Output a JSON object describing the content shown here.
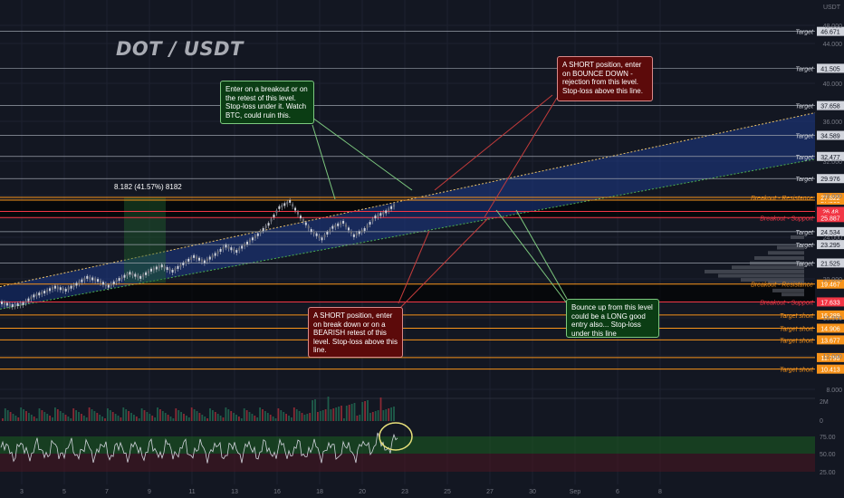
{
  "header": {
    "title": "DOT / USDT",
    "currency": "USDT"
  },
  "chart_data": {
    "type": "line",
    "title": "DOT / USDT",
    "y_axis_labels": [
      "48.000",
      "44.000",
      "40.000",
      "36.000",
      "32.000",
      "28.000",
      "24.000",
      "20.000",
      "16.000",
      "12.000",
      "8.000"
    ],
    "x_tick_labels": [
      "3",
      "5",
      "7",
      "9",
      "11",
      "13",
      "16",
      "18",
      "20",
      "23",
      "25",
      "27",
      "30",
      "Sep",
      "6",
      "8"
    ],
    "levels": [
      {
        "label": "Target",
        "price": "46.671",
        "kind": "target",
        "color": "#9aa0aa"
      },
      {
        "label": "Target",
        "price": "41.505",
        "kind": "target",
        "color": "#9aa0aa"
      },
      {
        "label": "Target",
        "price": "37.658",
        "kind": "target",
        "color": "#9aa0aa"
      },
      {
        "label": "Target",
        "price": "34.589",
        "kind": "target",
        "color": "#9aa0aa"
      },
      {
        "label": "Target",
        "price": "32.477",
        "kind": "target",
        "color": "#9aa0aa"
      },
      {
        "label": "Target",
        "price": "29.976",
        "kind": "target",
        "color": "#9aa0aa"
      },
      {
        "label": "",
        "price": "27.560",
        "kind": "orange",
        "color": "#f7931a"
      },
      {
        "label": "Breakout - Resistance",
        "price": "27.822",
        "kind": "breakout",
        "color": "#f7931a"
      },
      {
        "label": "",
        "price": "26.48",
        "kind": "current",
        "color": "#f23645"
      },
      {
        "label": "Breakout - Support",
        "price": "25.887",
        "kind": "support",
        "color": "#f23645"
      },
      {
        "label": "Target",
        "price": "24.534",
        "kind": "target",
        "color": "#9aa0aa"
      },
      {
        "label": "Target",
        "price": "23.295",
        "kind": "target",
        "color": "#9aa0aa"
      },
      {
        "label": "Target",
        "price": "21.525",
        "kind": "target",
        "color": "#9aa0aa"
      },
      {
        "label": "Breakout - Resistance",
        "price": "19.467",
        "kind": "breakout",
        "color": "#f7931a"
      },
      {
        "label": "Breakout - Support",
        "price": "17.633",
        "kind": "support",
        "color": "#f23645"
      },
      {
        "label": "Target short",
        "price": "16.289",
        "kind": "short",
        "color": "#f7931a"
      },
      {
        "label": "Target short",
        "price": "14.906",
        "kind": "short",
        "color": "#f7931a"
      },
      {
        "label": "Target short",
        "price": "13.677",
        "kind": "short",
        "color": "#f7931a"
      },
      {
        "label": "",
        "price": "11.796",
        "kind": "short",
        "color": "#f7931a"
      },
      {
        "label": "Target short",
        "price": "10.413",
        "kind": "short",
        "color": "#f7931a"
      }
    ],
    "measurement": "8.182 (41.57%) 8182",
    "volume_axis": [
      "2M",
      "0"
    ],
    "rsi_axis": [
      "75.00",
      "50.00",
      "25.00"
    ],
    "rsi_band": [
      50,
      75
    ],
    "grid": true
  },
  "annotations": {
    "breakout_note": "Enter on a breakout or on the retest of this level. Stop-loss under it. Watch BTC, could ruin this.",
    "short_bounce_note": "A SHORT position, enter on BOUNCE DOWN - rejection from this level. Stop-loss above this line.",
    "short_break_note": "A SHORT position, enter on break down or on a BEARISH retest of this level. Stop-loss above this line.",
    "long_bounce_note": "Bounce up from this level could be a LONG good entry also... Stop-loss under this line"
  }
}
